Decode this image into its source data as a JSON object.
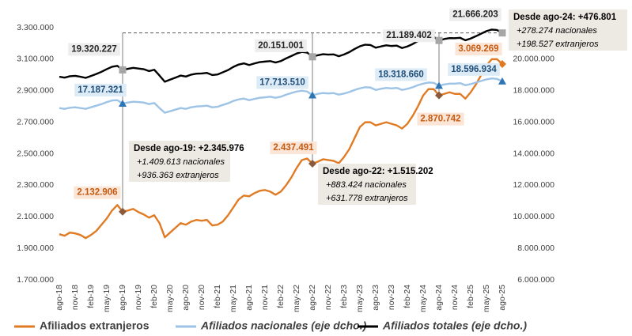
{
  "chart_data": {
    "type": "line",
    "categories": [
      "ago-18",
      null,
      null,
      "nov-18",
      null,
      null,
      "feb-19",
      null,
      null,
      "may-19",
      null,
      null,
      "ago-19",
      null,
      null,
      "nov-19",
      null,
      null,
      "feb-20",
      null,
      null,
      "may-20",
      null,
      null,
      "ago-20",
      null,
      null,
      "nov-20",
      null,
      null,
      "feb-21",
      null,
      null,
      "may-21",
      null,
      null,
      "ago-21",
      null,
      null,
      "nov-21",
      null,
      null,
      "feb-22",
      null,
      null,
      "may-22",
      null,
      null,
      "ago-22",
      null,
      null,
      "nov-22",
      null,
      null,
      "feb-23",
      null,
      null,
      "may-23",
      null,
      null,
      "ago-23",
      null,
      null,
      "nov-23",
      null,
      null,
      "feb-24",
      null,
      null,
      "may-24",
      null,
      null,
      "ago-24",
      null,
      null,
      "nov-24",
      null,
      null,
      "feb-25",
      null,
      null,
      "may-25",
      null,
      null,
      "ago-25"
    ],
    "ylim": [
      1700000,
      3300000
    ],
    "yticks": [
      {
        "value": 1700000,
        "label": "1.700.000"
      },
      {
        "value": 1900000,
        "label": "1.900.000"
      },
      {
        "value": 2100000,
        "label": "2.100.000"
      },
      {
        "value": 2300000,
        "label": "2.300.000"
      },
      {
        "value": 2500000,
        "label": "2.500.000"
      },
      {
        "value": 2700000,
        "label": "2.700.000"
      },
      {
        "value": 2900000,
        "label": "2.900.000"
      },
      {
        "value": 3100000,
        "label": "3.100.000"
      },
      {
        "value": 3300000,
        "label": "3.300.000"
      }
    ],
    "y2lim": [
      6000000,
      22000000
    ],
    "y2ticks": [
      {
        "value": 6000000,
        "label": "6.000.000"
      },
      {
        "value": 8000000,
        "label": "8.000.000"
      },
      {
        "value": 10000000,
        "label": "10.000.000"
      },
      {
        "value": 12000000,
        "label": "12.000.000"
      },
      {
        "value": 14000000,
        "label": "14.000.000"
      },
      {
        "value": 16000000,
        "label": "16.000.000"
      },
      {
        "value": 18000000,
        "label": "18.000.000"
      },
      {
        "value": 20000000,
        "label": "20.000.000"
      },
      {
        "value": 22000000,
        "label": "22.000.000"
      }
    ],
    "series": [
      {
        "name": "Afiliados extranjeros",
        "color": "#E07B24",
        "marker_color": "#8B5A3C",
        "label_color": "#C55A11",
        "label_bg": "#FBE5D6",
        "axis": "y",
        "values": [
          1990000,
          1980000,
          2000000,
          1995000,
          1985000,
          1965000,
          1985000,
          2010000,
          2050000,
          2090000,
          2140000,
          2175000,
          2132906,
          2140000,
          2150000,
          2130000,
          2115000,
          2095000,
          2110000,
          2060000,
          1970000,
          2000000,
          2030000,
          2060000,
          2050000,
          2070000,
          2080000,
          2075000,
          2080000,
          2045000,
          2050000,
          2070000,
          2110000,
          2160000,
          2210000,
          2235000,
          2230000,
          2250000,
          2265000,
          2270000,
          2260000,
          2240000,
          2260000,
          2300000,
          2350000,
          2410000,
          2460000,
          2470000,
          2437491,
          2450000,
          2465000,
          2460000,
          2455000,
          2440000,
          2480000,
          2530000,
          2600000,
          2670000,
          2700000,
          2700000,
          2680000,
          2690000,
          2700000,
          2690000,
          2680000,
          2660000,
          2690000,
          2740000,
          2800000,
          2870000,
          2910000,
          2910000,
          2870742,
          2880000,
          2890000,
          2880000,
          2880000,
          2850000,
          2890000,
          2940000,
          3000000,
          3060000,
          3100000,
          3100000,
          3069269
        ],
        "value_labels": [
          null,
          null,
          null,
          null,
          null,
          null,
          null,
          null,
          null,
          null,
          null,
          null,
          "2.132.906",
          null,
          null,
          null,
          null,
          null,
          null,
          null,
          null,
          null,
          null,
          null,
          null,
          null,
          null,
          null,
          null,
          null,
          null,
          null,
          null,
          null,
          null,
          null,
          null,
          null,
          null,
          null,
          null,
          null,
          null,
          null,
          null,
          null,
          null,
          null,
          "2.437.491",
          null,
          null,
          null,
          null,
          null,
          null,
          null,
          null,
          null,
          null,
          null,
          null,
          null,
          null,
          null,
          null,
          null,
          null,
          null,
          null,
          null,
          null,
          null,
          "2.870.742",
          null,
          null,
          null,
          null,
          null,
          null,
          null,
          null,
          null,
          null,
          null,
          "3.069.269"
        ]
      },
      {
        "name": "Afiliados nacionales (eje dcho.)",
        "color": "#9DC3E6",
        "marker_color": "#2E75B6",
        "label_color": "#1F4E79",
        "label_bg": "#DDEBF7",
        "axis": "y2",
        "values": [
          16900000,
          16850000,
          16920000,
          16950000,
          16900000,
          16850000,
          16950000,
          17050000,
          17150000,
          17280000,
          17380000,
          17400000,
          17187321,
          17250000,
          17300000,
          17280000,
          17250000,
          17150000,
          17220000,
          16900000,
          16600000,
          16700000,
          16800000,
          16900000,
          16850000,
          16950000,
          17000000,
          17020000,
          17050000,
          16950000,
          16980000,
          17100000,
          17200000,
          17350000,
          17450000,
          17500000,
          17400000,
          17480000,
          17550000,
          17580000,
          17620000,
          17550000,
          17620000,
          17750000,
          17850000,
          17950000,
          18000000,
          17950000,
          17713510,
          17800000,
          17850000,
          17830000,
          17850000,
          17750000,
          17820000,
          17920000,
          18050000,
          18150000,
          18220000,
          18200000,
          18050000,
          18120000,
          18180000,
          18150000,
          18180000,
          18050000,
          18120000,
          18220000,
          18350000,
          18450000,
          18520000,
          18500000,
          18318660,
          18400000,
          18450000,
          18450000,
          18480000,
          18350000,
          18420000,
          18520000,
          18620000,
          18720000,
          18780000,
          18750000,
          18596934
        ],
        "value_labels": [
          null,
          null,
          null,
          null,
          null,
          null,
          null,
          null,
          null,
          null,
          null,
          null,
          "17.187.321",
          null,
          null,
          null,
          null,
          null,
          null,
          null,
          null,
          null,
          null,
          null,
          null,
          null,
          null,
          null,
          null,
          null,
          null,
          null,
          null,
          null,
          null,
          null,
          null,
          null,
          null,
          null,
          null,
          null,
          null,
          null,
          null,
          null,
          null,
          null,
          "17.713.510",
          null,
          null,
          null,
          null,
          null,
          null,
          null,
          null,
          null,
          null,
          null,
          null,
          null,
          null,
          null,
          null,
          null,
          null,
          null,
          null,
          null,
          null,
          null,
          "18.318.660",
          null,
          null,
          null,
          null,
          null,
          null,
          null,
          null,
          null,
          null,
          null,
          "18.596.934"
        ]
      },
      {
        "name": "Afiliados totales (eje dcho.)",
        "color": "#000000",
        "marker_color": "#A6A6A6",
        "label_color": "#262626",
        "label_bg": "#EDEDED",
        "axis": "y2",
        "values": [
          18890000,
          18830000,
          18920000,
          18945000,
          18885000,
          18815000,
          18935000,
          19060000,
          19200000,
          19370000,
          19520000,
          19575000,
          19320227,
          19390000,
          19450000,
          19410000,
          19365000,
          19245000,
          19330000,
          18960000,
          18570000,
          18700000,
          18830000,
          18960000,
          18900000,
          19020000,
          19080000,
          19095000,
          19130000,
          18995000,
          19030000,
          19170000,
          19310000,
          19510000,
          19660000,
          19735000,
          19630000,
          19730000,
          19815000,
          19850000,
          19880000,
          19790000,
          19880000,
          20050000,
          20200000,
          20360000,
          20460000,
          20420000,
          20151001,
          20250000,
          20315000,
          20290000,
          20305000,
          20190000,
          20300000,
          20450000,
          20650000,
          20820000,
          20920000,
          20900000,
          20730000,
          20810000,
          20880000,
          20840000,
          20860000,
          20710000,
          20810000,
          20960000,
          21150000,
          21320000,
          21430000,
          21410000,
          21189402,
          21280000,
          21340000,
          21330000,
          21360000,
          21200000,
          21310000,
          21460000,
          21620000,
          21780000,
          21880000,
          21850000,
          21666203
        ],
        "value_labels": [
          null,
          null,
          null,
          null,
          null,
          null,
          null,
          null,
          null,
          null,
          null,
          null,
          "19.320.227",
          null,
          null,
          null,
          null,
          null,
          null,
          null,
          null,
          null,
          null,
          null,
          null,
          null,
          null,
          null,
          null,
          null,
          null,
          null,
          null,
          null,
          null,
          null,
          null,
          null,
          null,
          null,
          null,
          null,
          null,
          null,
          null,
          null,
          null,
          null,
          "20.151.001",
          null,
          null,
          null,
          null,
          null,
          null,
          null,
          null,
          null,
          null,
          null,
          null,
          null,
          null,
          null,
          null,
          null,
          null,
          null,
          null,
          null,
          null,
          null,
          "21.189.402",
          null,
          null,
          null,
          null,
          null,
          null,
          null,
          null,
          null,
          null,
          null,
          "21.666.203"
        ]
      }
    ],
    "annotations": [
      {
        "title": "Desde ago-19: +2.345.976",
        "lines": [
          "+1.409.613 nacionales",
          "+936.363 extranjeros"
        ]
      },
      {
        "title": "Desde ago-22: +1.515.202",
        "lines": [
          "+883.424 nacionales",
          "+631.778 extranjeros"
        ]
      },
      {
        "title": "Desde ago-24: +476.801",
        "lines": [
          "+278.274 nacionales",
          "+198.527 extranjeros"
        ]
      }
    ],
    "annotation_bg": "#EDEAE3"
  }
}
